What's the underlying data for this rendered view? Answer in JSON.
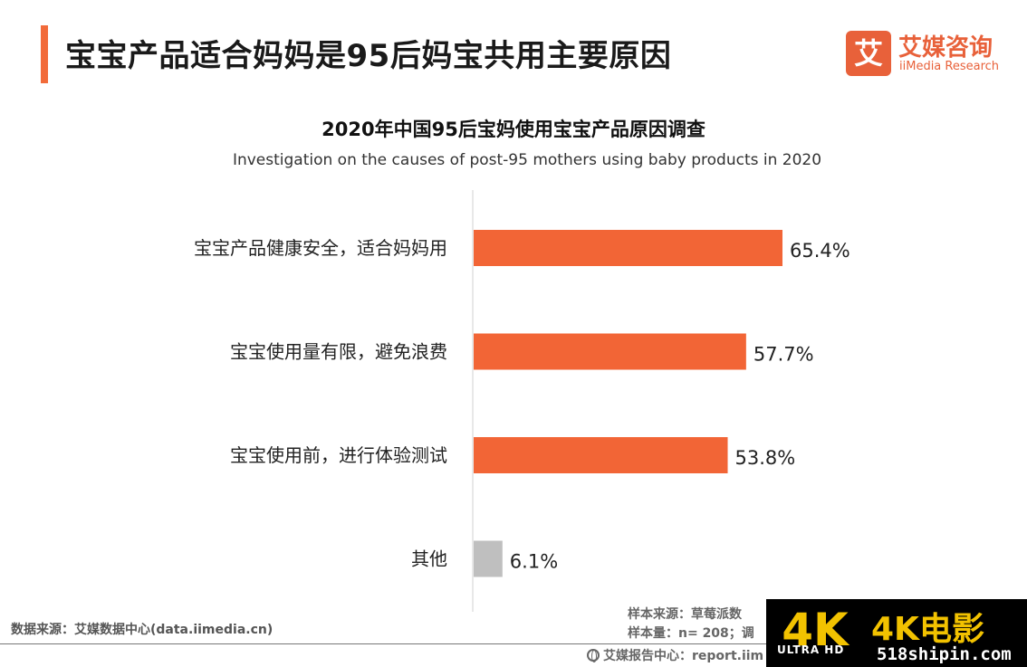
{
  "header": {
    "title": "宝宝产品适合妈妈是95后妈宝共用主要原因",
    "accent_color": "#f26b3a"
  },
  "logo": {
    "glyph": "艾",
    "name_cn": "艾媒咨询",
    "name_en": "iiMedia Research",
    "color": "#e8613a"
  },
  "chart_data": {
    "type": "bar",
    "orientation": "horizontal",
    "title": "2020年中国95后宝妈使用宝宝产品原因调查",
    "subtitle": "Investigation on the causes of post-95 mothers using baby products in 2020",
    "categories": [
      "宝宝产品健康安全，适合妈妈用",
      "宝宝使用量有限，避免浪费",
      "宝宝使用前，进行体验测试",
      "其他"
    ],
    "values": [
      65.4,
      57.7,
      53.8,
      6.1
    ],
    "value_labels": [
      "65.4%",
      "57.7%",
      "53.8%",
      "6.1%"
    ],
    "unit": "%",
    "bar_colors": [
      "#f26536",
      "#f26536",
      "#f26536",
      "#bfbfbf"
    ],
    "xlim": [
      0,
      100
    ],
    "grid": false,
    "legend": "none"
  },
  "footer": {
    "data_source": "数据来源：艾媒数据中心(data.iimedia.cn)",
    "sample_source": "样本来源：草莓派数",
    "sample_size": "样本量：n= 208；调",
    "report_center": "艾媒报告中心：report.iim"
  },
  "watermark": {
    "badge_text": "4K",
    "badge_subtext": "ULTRA HD",
    "brand": "4K电影",
    "site": "518shipin.com"
  }
}
